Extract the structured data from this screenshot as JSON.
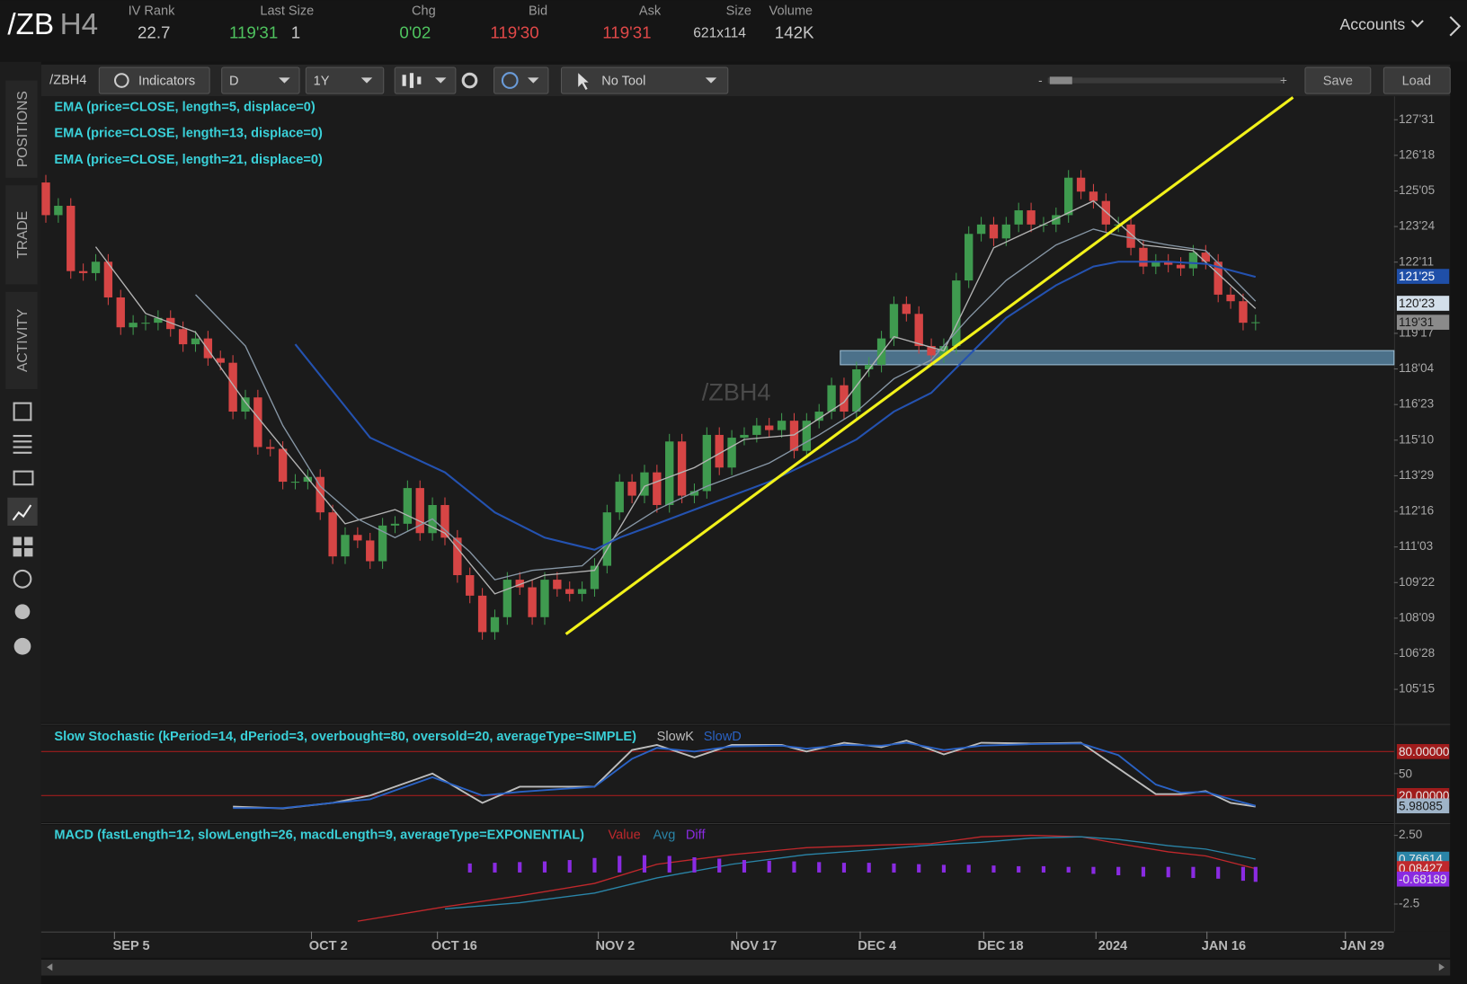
{
  "header": {
    "symbol_root": "/ZB",
    "symbol_month": "H4",
    "accounts": "Accounts",
    "fields": [
      {
        "label": "IV Rank",
        "value": "22.7"
      },
      {
        "label": "Last Size",
        "value": "119'31",
        "extra": "1"
      },
      {
        "label": "Chg",
        "value": "0'02"
      },
      {
        "label": "Bid",
        "value": "119'30"
      },
      {
        "label": "Ask",
        "value": "119'31"
      },
      {
        "label": "Size",
        "value": "621x114"
      },
      {
        "label": "Volume",
        "value": "142K"
      }
    ]
  },
  "toolbar": {
    "symbol": "/ZBH4",
    "indicators": "Indicators",
    "aggregation": "D",
    "range": "1Y",
    "tool": "No Tool",
    "zoom_out": "-",
    "zoom_in": "+",
    "save": "Save",
    "load": "Load"
  },
  "side_tabs": [
    "POSITIONS",
    "TRADE",
    "ACTIVITY"
  ],
  "chart_data": [
    {
      "type": "candlestick",
      "watermark": "/ZBH4",
      "up_color": "#3f9a4f",
      "down_color": "#d64545",
      "open": [
        125.49,
        124.2,
        124.57,
        121.99,
        121.91,
        122.36,
        120.95,
        119.77,
        119.95,
        119.95,
        120.14,
        119.7,
        119.1,
        119.33,
        118.55,
        118.37,
        116.44,
        117.0,
        115.04,
        114.97,
        113.67,
        113.67,
        113.86,
        112.46,
        110.72,
        111.57,
        111.35,
        110.53,
        111.94,
        112.01,
        113.42,
        111.64,
        112.75,
        111.46,
        109.98,
        109.17,
        107.73,
        108.32,
        109.8,
        109.5,
        108.32,
        109.8,
        109.43,
        109.24,
        109.43,
        110.35,
        112.46,
        113.67,
        113.12,
        114.04,
        112.75,
        115.26,
        113.12,
        113.3,
        115.52,
        114.23,
        115.41,
        115.52,
        115.89,
        115.71,
        116.08,
        114.89,
        116.08,
        116.44,
        117.48,
        116.44,
        118.11,
        118.29,
        119.33,
        120.69,
        120.3,
        119.03,
        118.66,
        119.03,
        121.62,
        123.46,
        123.83,
        123.28,
        123.83,
        124.39,
        123.83,
        123.83,
        124.2,
        125.68,
        125.13,
        124.76,
        123.83,
        123.83,
        122.91,
        122.17,
        122.36,
        122.24,
        122.1,
        122.72,
        122.36,
        121.06,
        120.8,
        119.95
      ],
      "high": [
        125.79,
        124.87,
        124.87,
        122.29,
        122.66,
        122.66,
        121.25,
        120.25,
        120.25,
        120.44,
        120.44,
        120.0,
        119.63,
        119.63,
        118.85,
        118.67,
        117.3,
        117.3,
        115.34,
        115.27,
        113.97,
        114.16,
        114.16,
        112.76,
        111.87,
        111.87,
        111.65,
        112.24,
        112.31,
        113.72,
        113.72,
        113.05,
        113.05,
        111.76,
        110.28,
        109.47,
        108.62,
        110.1,
        110.1,
        109.8,
        110.1,
        110.1,
        109.73,
        109.73,
        110.65,
        112.76,
        113.97,
        113.97,
        114.34,
        114.34,
        115.56,
        115.56,
        113.6,
        115.82,
        115.82,
        115.71,
        115.82,
        116.19,
        116.19,
        116.38,
        116.38,
        116.38,
        116.74,
        117.78,
        117.78,
        118.41,
        118.59,
        119.63,
        120.99,
        120.99,
        120.6,
        119.33,
        119.33,
        121.92,
        123.76,
        124.13,
        124.13,
        124.13,
        124.69,
        124.69,
        124.13,
        124.5,
        125.98,
        125.98,
        125.43,
        125.06,
        124.13,
        124.13,
        123.21,
        122.66,
        122.66,
        122.54,
        123.02,
        123.02,
        122.66,
        121.36,
        121.1,
        120.27
      ],
      "low": [
        123.9,
        123.9,
        121.69,
        121.61,
        121.61,
        120.65,
        119.47,
        119.47,
        119.65,
        119.65,
        119.4,
        118.8,
        118.8,
        118.25,
        118.07,
        116.14,
        116.14,
        114.74,
        114.67,
        113.37,
        113.37,
        113.37,
        112.16,
        110.42,
        110.42,
        111.05,
        110.23,
        110.23,
        111.64,
        111.71,
        111.34,
        111.34,
        111.16,
        109.68,
        108.87,
        107.43,
        107.43,
        108.02,
        109.2,
        108.02,
        108.02,
        109.13,
        108.94,
        108.94,
        109.13,
        110.05,
        112.16,
        112.82,
        112.82,
        112.45,
        112.45,
        112.82,
        112.82,
        113.0,
        113.93,
        113.93,
        115.11,
        115.22,
        115.41,
        115.41,
        114.59,
        114.59,
        115.78,
        116.14,
        116.14,
        116.14,
        117.81,
        117.99,
        119.03,
        120.0,
        118.73,
        118.36,
        118.36,
        118.73,
        121.32,
        123.16,
        122.98,
        122.98,
        123.53,
        123.53,
        123.53,
        123.53,
        123.9,
        124.83,
        124.46,
        123.53,
        123.53,
        122.61,
        121.87,
        121.87,
        121.94,
        121.8,
        121.8,
        122.06,
        120.76,
        120.5,
        119.65,
        119.65
      ],
      "close": [
        124.2,
        124.57,
        121.99,
        121.91,
        122.36,
        120.95,
        119.77,
        119.95,
        119.95,
        120.14,
        119.7,
        119.1,
        119.33,
        118.55,
        118.37,
        116.44,
        117.0,
        115.04,
        114.97,
        113.67,
        113.67,
        113.86,
        112.46,
        110.72,
        111.57,
        111.35,
        110.53,
        111.94,
        112.01,
        113.42,
        111.64,
        112.75,
        111.46,
        109.98,
        109.17,
        107.73,
        108.32,
        109.8,
        109.5,
        108.32,
        109.8,
        109.43,
        109.24,
        109.43,
        110.35,
        112.46,
        113.67,
        113.12,
        114.04,
        112.75,
        115.26,
        113.12,
        113.3,
        115.52,
        114.23,
        115.41,
        115.52,
        115.89,
        115.71,
        116.08,
        114.89,
        116.08,
        116.44,
        117.48,
        116.44,
        118.11,
        118.29,
        119.33,
        120.69,
        120.3,
        119.03,
        118.66,
        119.03,
        121.62,
        123.46,
        123.83,
        123.28,
        123.83,
        124.39,
        123.83,
        123.83,
        124.2,
        125.68,
        125.13,
        124.76,
        123.83,
        123.83,
        122.91,
        122.17,
        122.36,
        122.24,
        122.1,
        122.72,
        122.36,
        121.06,
        120.8,
        119.95,
        119.97
      ],
      "series": [
        {
          "name": "EMA (price=CLOSE, length=5, displace=0)",
          "color": "#b4b4b4",
          "x": [
            4,
            8,
            12,
            16,
            20,
            24,
            28,
            32,
            36,
            40,
            44,
            48,
            52,
            56,
            60,
            64,
            68,
            72,
            76,
            80,
            84,
            88,
            92,
            97
          ],
          "values": [
            122.95,
            120.32,
            119.58,
            116.81,
            114.41,
            112.01,
            112.57,
            111.64,
            109.24,
            109.98,
            110.17,
            113.49,
            114.23,
            115.34,
            115.52,
            116.81,
            119.4,
            118.84,
            122.91,
            123.83,
            124.76,
            123.02,
            122.8,
            120.51
          ]
        },
        {
          "name": "EMA (price=CLOSE, length=13, displace=0)",
          "color": "#8797a6",
          "x": [
            12,
            16,
            19,
            22,
            25,
            28,
            31,
            34,
            36,
            39,
            43,
            46,
            49,
            53,
            58,
            62,
            65,
            68,
            71,
            74,
            77,
            81,
            84,
            86,
            90,
            93,
            97
          ],
          "values": [
            121.06,
            119.03,
            115.89,
            113.49,
            112.2,
            111.46,
            112.2,
            110.9,
            109.8,
            110.17,
            110.35,
            111.64,
            112.57,
            113.49,
            114.41,
            115.52,
            116.44,
            117.74,
            118.48,
            120.14,
            121.62,
            123.02,
            123.65,
            123.39,
            123.02,
            122.8,
            120.8
          ]
        },
        {
          "name": "EMA (price=CLOSE, length=21, displace=0)",
          "color": "#2452b0",
          "x": [
            20,
            26,
            32,
            36,
            40,
            44,
            46,
            49,
            53,
            58,
            62,
            65,
            68,
            71,
            74,
            77,
            81,
            84,
            86,
            90,
            93,
            97
          ],
          "values": [
            119.1,
            115.41,
            114.04,
            112.46,
            111.46,
            110.98,
            111.46,
            112.01,
            112.75,
            113.67,
            114.6,
            115.34,
            116.44,
            117.18,
            118.66,
            120.14,
            121.43,
            122.17,
            122.36,
            122.36,
            122.28,
            121.76
          ]
        }
      ],
      "price_labels": [
        {
          "label": "121'25",
          "value": 121.78125,
          "color": "#1f4fa8",
          "text_color": "#ffffff"
        },
        {
          "label": "120'23",
          "value": 120.71875,
          "color": "#d3dfea",
          "text_color": "#1a1a1a"
        },
        {
          "label": "119'31",
          "value": 119.96875,
          "color": "#8a8a8a",
          "text_color": "#1a1a1a"
        }
      ],
      "zone": {
        "from": 118.29,
        "to": 118.85,
        "x_start": 63.7,
        "color": "#5d8fb0"
      },
      "trendline": {
        "x": [
          41.7,
          100
        ],
        "values": [
          107.65,
          128.85
        ],
        "color": "#f2f21a"
      },
      "ylim": [
        104.176,
        128.855
      ],
      "yticks": [
        {
          "value": 127.96875,
          "label": "127'31"
        },
        {
          "value": 126.5625,
          "label": "126'18"
        },
        {
          "value": 125.15625,
          "label": "125'05"
        },
        {
          "value": 123.75,
          "label": "123'24"
        },
        {
          "value": 122.34375,
          "label": "122'11"
        },
        {
          "value": 119.53125,
          "label": "119'17"
        },
        {
          "value": 118.125,
          "label": "118'04"
        },
        {
          "value": 116.71875,
          "label": "116'23"
        },
        {
          "value": 115.3125,
          "label": "115'10"
        },
        {
          "value": 113.90625,
          "label": "113'29"
        },
        {
          "value": 112.5,
          "label": "112'16"
        },
        {
          "value": 111.09375,
          "label": "111'03"
        },
        {
          "value": 109.6875,
          "label": "109'22"
        },
        {
          "value": 108.28125,
          "label": "108'09"
        },
        {
          "value": 106.875,
          "label": "106'28"
        },
        {
          "value": 105.46875,
          "label": "105'15"
        }
      ],
      "xlim": [
        -0.375,
        108.1
      ],
      "xticks": [
        {
          "value": 5.5,
          "label": "SEP 5"
        },
        {
          "value": 21.3,
          "label": "OCT 2"
        },
        {
          "value": 31.4,
          "label": "OCT 16"
        },
        {
          "value": 44.3,
          "label": "NOV 2"
        },
        {
          "value": 55.4,
          "label": "NOV 17"
        },
        {
          "value": 65.3,
          "label": "DEC 4"
        },
        {
          "value": 75.2,
          "label": "DEC 18"
        },
        {
          "value": 84.2,
          "label": "2024"
        },
        {
          "value": 93.1,
          "label": "JAN 16"
        },
        {
          "value": 104.2,
          "label": "JAN 29"
        }
      ]
    },
    {
      "type": "line",
      "title": "Slow Stochastic (kPeriod=14, dPeriod=3, overbought=80, oversold=20, averageType=SIMPLE)",
      "series": [
        {
          "name": "SlowK",
          "color": "#bdbdbd",
          "x": [
            15,
            19,
            23,
            26,
            31,
            35,
            38,
            44,
            47,
            49,
            52,
            55,
            59,
            61,
            64,
            67,
            69,
            72,
            75,
            79,
            83,
            86,
            89,
            91,
            93,
            95,
            97
          ],
          "values": [
            5,
            2.5,
            10,
            20,
            50,
            10,
            32,
            32,
            82,
            89,
            72,
            89,
            89,
            80,
            92,
            86,
            95,
            76,
            92,
            91,
            92,
            57,
            22,
            22,
            26,
            10,
            5
          ]
        },
        {
          "name": "SlowD",
          "color": "#2a62c4",
          "x": [
            15,
            19,
            23,
            26,
            31,
            35,
            38,
            44,
            47,
            49,
            52,
            55,
            59,
            61,
            64,
            67,
            69,
            72,
            75,
            79,
            83,
            86,
            89,
            91,
            93,
            95,
            97
          ],
          "values": [
            3,
            3,
            10,
            15,
            45,
            20,
            25,
            32,
            70,
            85,
            80,
            87,
            88,
            84,
            89,
            88,
            92,
            82,
            88,
            90,
            91,
            75,
            35,
            24,
            25,
            15,
            6
          ]
        }
      ],
      "levels": [
        80,
        20
      ],
      "level_color": "#a01c1c",
      "last_value": {
        "value": 5.98085,
        "color": "#9fb4c8"
      },
      "ylim": [
        -15,
        112.5
      ],
      "yticks": [
        {
          "value": 80,
          "label": "80.00000"
        },
        50,
        {
          "value": 20,
          "label": "20.00000"
        }
      ]
    },
    {
      "type": "macd",
      "title": "MACD (fastLength=12, slowLength=26, macdLength=9, averageType=EXPONENTIAL)",
      "series": [
        {
          "name": "Value",
          "color": "#c0282c",
          "style": "line",
          "x": [
            25,
            32,
            38,
            44,
            49,
            55,
            61,
            67,
            71,
            75,
            79,
            83,
            86,
            90,
            93,
            97
          ],
          "values": [
            -3.75,
            -2.7,
            -1.9,
            -1.0,
            0.4,
            1.1,
            1.6,
            1.8,
            1.9,
            2.4,
            2.5,
            2.4,
            1.9,
            1.3,
            1.0,
            0.08
          ]
        },
        {
          "name": "Avg",
          "color": "#2a85a8",
          "style": "line",
          "x": [
            32,
            38,
            44,
            49,
            55,
            61,
            67,
            71,
            75,
            79,
            83,
            86,
            90,
            93,
            97
          ],
          "values": [
            -2.85,
            -2.4,
            -1.7,
            -0.6,
            0.4,
            1.1,
            1.5,
            1.8,
            2.0,
            2.3,
            2.4,
            2.2,
            1.75,
            1.5,
            0.77
          ]
        },
        {
          "name": "Diff",
          "color": "#8a2be2",
          "style": "bar",
          "x": [
            34,
            36,
            38,
            40,
            42,
            44,
            46,
            48,
            50,
            52,
            54,
            56,
            58,
            60,
            62,
            64,
            66,
            68,
            70,
            72,
            74,
            76,
            78,
            80,
            82,
            84,
            86,
            88,
            90,
            92,
            94,
            96,
            97
          ],
          "values": [
            0.25,
            0.3,
            0.35,
            0.4,
            0.5,
            0.65,
            0.8,
            0.85,
            0.8,
            0.7,
            0.6,
            0.5,
            0.45,
            0.4,
            0.35,
            0.3,
            0.3,
            0.25,
            0.2,
            0.15,
            0.15,
            0.1,
            0.05,
            0.05,
            0.0,
            -0.1,
            -0.2,
            -0.3,
            -0.35,
            -0.4,
            -0.45,
            -0.6,
            -0.68
          ]
        }
      ],
      "last_values": [
        {
          "value": 0.76614,
          "color": "#2a85a8"
        },
        {
          "value": 0.08427,
          "color": "#c0282c"
        },
        {
          "value": -0.68189,
          "color": "#8a2be2"
        }
      ],
      "ylim": [
        -4.44,
        3.19
      ],
      "yticks": [
        {
          "value": 2.5,
          "label": "2.50"
        },
        -2.5
      ]
    }
  ]
}
